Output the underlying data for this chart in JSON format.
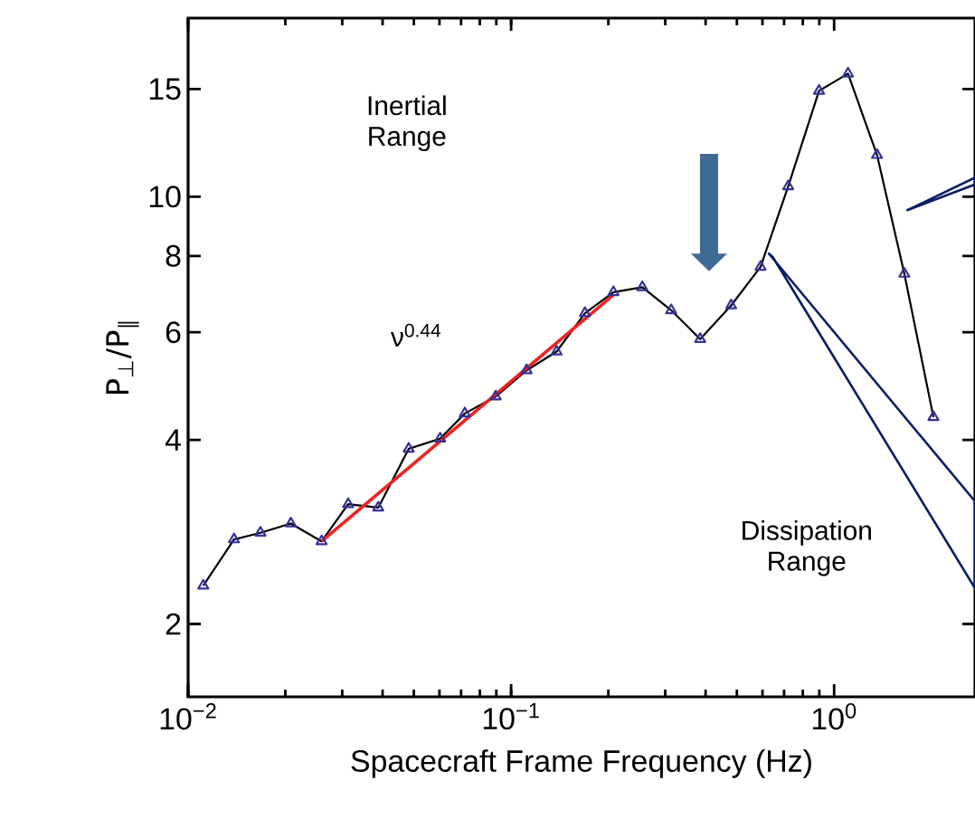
{
  "chart_data": {
    "type": "line",
    "xlabel": "Spacecraft Frame Frequency (Hz)",
    "ylabel": "P$_{⊥}$/P$_{∥}$",
    "log": "xy",
    "xlim": [
      0.01,
      2.73
    ],
    "ylim": [
      1.52,
      19.6
    ],
    "xticks": [
      {
        "value": 0.01,
        "label": "10$^{−2}$"
      },
      {
        "value": 0.1,
        "label": "10$^{−1}$"
      },
      {
        "value": 1,
        "label": "10$^{0}$"
      }
    ],
    "yticks": [
      2,
      4,
      6,
      8,
      10,
      15
    ],
    "marker": "triangle",
    "grid": false,
    "series": [
      {
        "color": "#33339a",
        "x": [
          0.01114,
          0.01387,
          0.01675,
          0.0208,
          0.0259,
          0.0313,
          0.0388,
          0.0482,
          0.0603,
          0.0719,
          0.0896,
          0.1117,
          0.1383,
          0.1693,
          0.2074,
          0.2548,
          0.313,
          0.385,
          0.48,
          0.592,
          0.721,
          0.898,
          1.104,
          1.358,
          1.65,
          2.03
        ],
        "values": [
          2.31,
          2.75,
          2.82,
          2.92,
          2.73,
          3.14,
          3.1,
          3.87,
          4.02,
          4.42,
          4.71,
          5.2,
          5.58,
          6.45,
          6.98,
          7.11,
          6.52,
          5.85,
          6.64,
          7.68,
          10.4,
          14.9,
          15.9,
          11.7,
          7.48,
          4.36
        ]
      },
      {
        "type": "line",
        "marker": "none",
        "color": "#ee2222",
        "x": [
          0.0259,
          0.207
        ],
        "values": [
          2.73,
          6.9
        ]
      }
    ],
    "annotations": [
      "Inertial Range",
      "ν$^{0.44}$",
      "Dissipation Range"
    ]
  }
}
